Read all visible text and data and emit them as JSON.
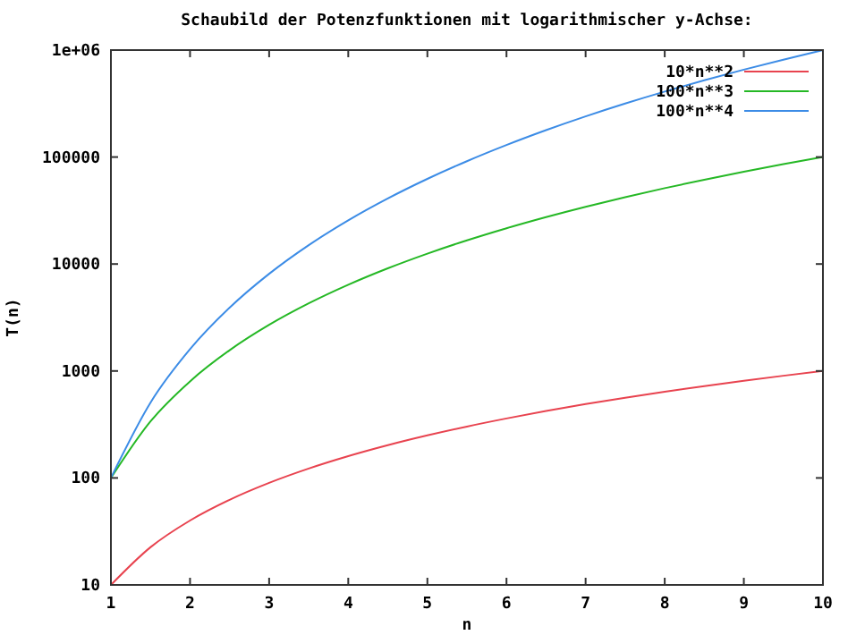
{
  "chart_data": {
    "type": "line",
    "title": "Schaubild der Potenzfunktionen mit logarithmischer y-Achse:",
    "xlabel": "n",
    "ylabel": "T(n)",
    "x": [
      1,
      1.5,
      2,
      2.5,
      3,
      3.5,
      4,
      4.5,
      5,
      5.5,
      6,
      6.5,
      7,
      7.5,
      8,
      8.5,
      9,
      9.5,
      10
    ],
    "series": [
      {
        "name": "10*n**2",
        "color": "#e8434f",
        "values": [
          10,
          22.5,
          40,
          62.5,
          90,
          122.5,
          160,
          202.5,
          250,
          302.5,
          360,
          422.5,
          490,
          562.5,
          640,
          722.5,
          810,
          902.5,
          1000
        ]
      },
      {
        "name": "100*n**3",
        "color": "#25b825",
        "values": [
          100,
          337.5,
          800,
          1562.5,
          2700,
          4287.5,
          6400,
          9112.5,
          12500,
          16637.5,
          21600,
          27462.5,
          34300,
          42187.5,
          51200,
          61412.5,
          72900,
          85737.5,
          100000
        ]
      },
      {
        "name": "100*n**4",
        "color": "#3c8ce6",
        "values": [
          100,
          506.25,
          1600,
          3906.25,
          8100,
          15006.25,
          25600,
          41006.25,
          62500,
          91506.25,
          129600,
          178506.25,
          240100,
          316406.25,
          409600,
          522006.25,
          656100,
          814506.25,
          1000000
        ]
      }
    ],
    "xlim": [
      1,
      10
    ],
    "xticks": [
      1,
      2,
      3,
      4,
      5,
      6,
      7,
      8,
      9,
      10
    ],
    "ylim": [
      10,
      1000000
    ],
    "yticks": [
      10,
      100,
      1000,
      10000,
      100000,
      {
        "value": 1000000,
        "label": "1e+06"
      }
    ],
    "log": "y",
    "grid": false,
    "legend": "top right",
    "marker": "none",
    "line_style": "solid"
  }
}
